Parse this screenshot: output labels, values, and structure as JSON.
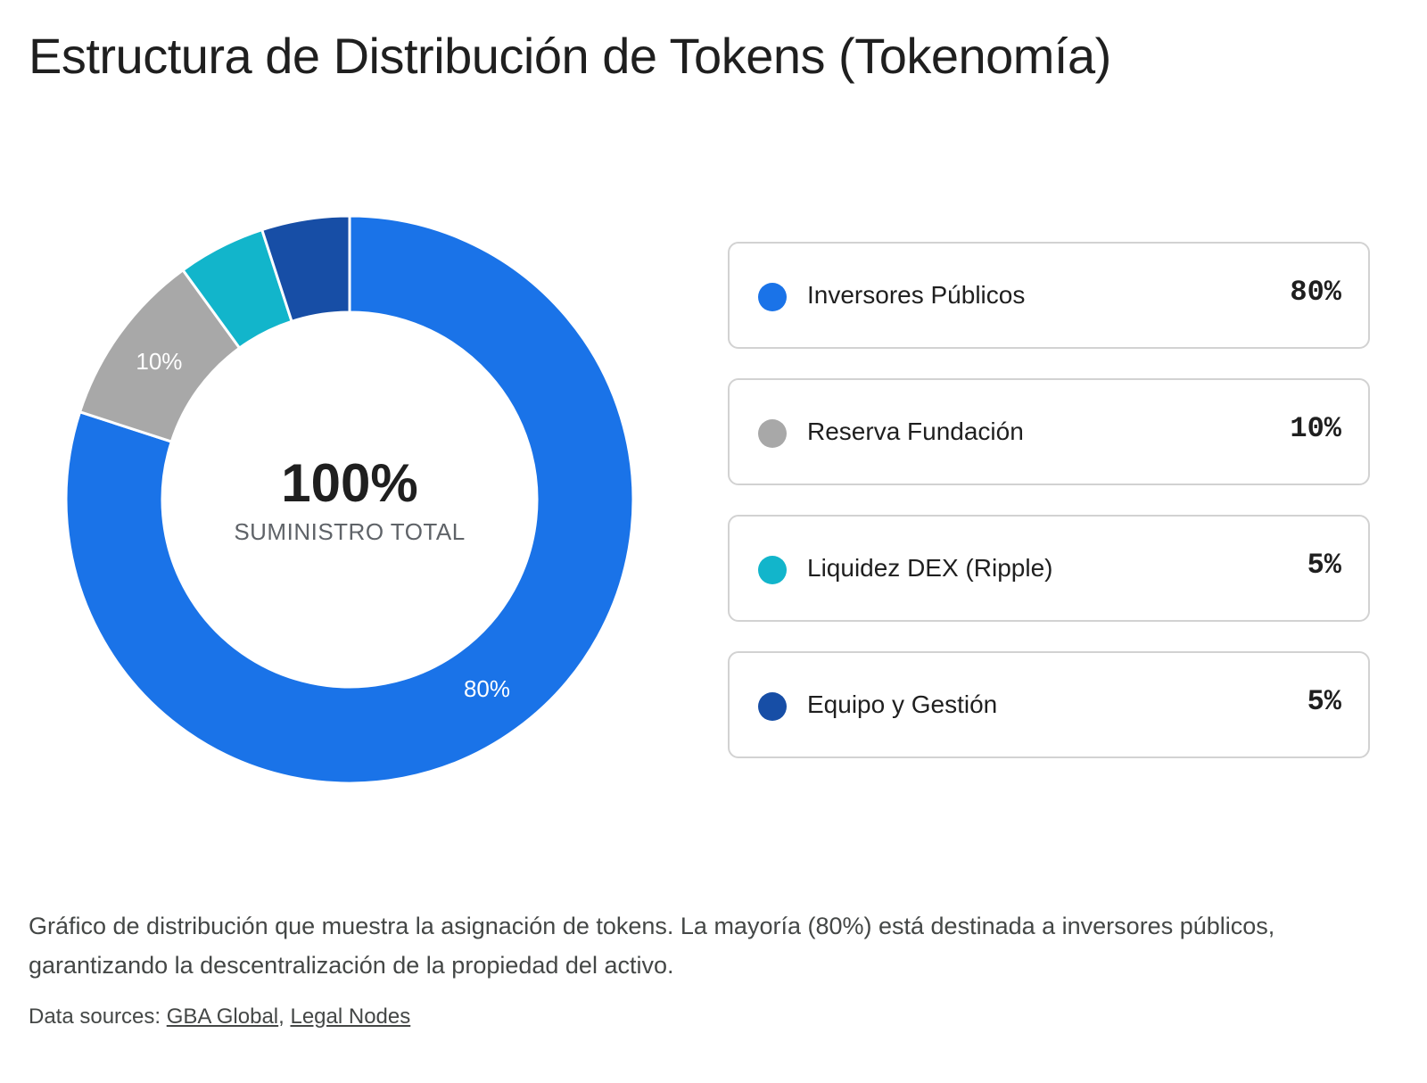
{
  "title": "Estructura de Distribución de Tokens (Tokenomía)",
  "chart_data": {
    "type": "pie",
    "donut": true,
    "categories": [
      "Inversores Públicos",
      "Reserva Fundación",
      "Liquidez DEX (Ripple)",
      "Equipo y Gestión"
    ],
    "values": [
      80,
      10,
      5,
      5
    ],
    "colors": [
      "#1a73e8",
      "#a8a8a8",
      "#12b5cb",
      "#174ea6"
    ],
    "slice_labels": [
      "80%",
      "10%",
      "",
      ""
    ],
    "center_value": "100%",
    "center_label": "SUMINISTRO TOTAL",
    "legend_position": "right"
  },
  "legend": {
    "items": [
      {
        "name": "Inversores Públicos",
        "value": "80%",
        "color": "#1a73e8"
      },
      {
        "name": "Reserva Fundación",
        "value": "10%",
        "color": "#a8a8a8"
      },
      {
        "name": "Liquidez DEX (Ripple)",
        "value": "5%",
        "color": "#12b5cb"
      },
      {
        "name": "Equipo y Gestión",
        "value": "5%",
        "color": "#174ea6"
      }
    ]
  },
  "caption": "Gráfico de distribución que muestra la asignación de tokens. La mayoría (80%) está destinada a inversores públicos, garantizando la descentralización de la propiedad del activo.",
  "sources": {
    "prefix": "Data sources: ",
    "separator": ", ",
    "links": [
      "GBA Global",
      "Legal Nodes"
    ]
  }
}
